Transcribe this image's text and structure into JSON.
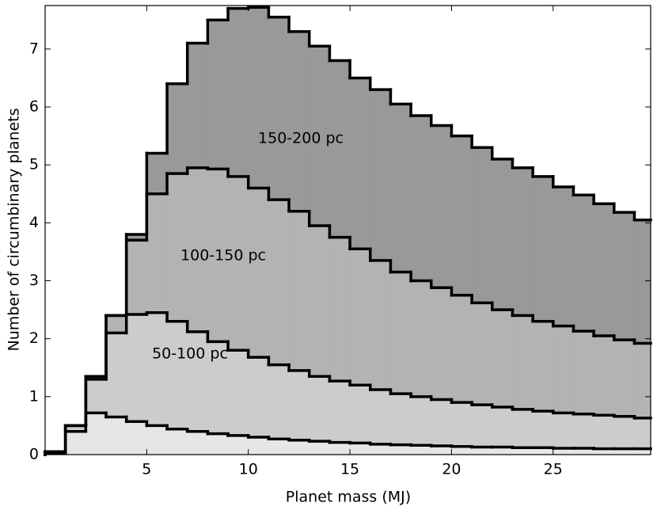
{
  "chart_data": {
    "type": "stacked-step-histogram",
    "xlabel": "Planet mass (MJ)",
    "ylabel": "Number of circumbinary planets",
    "bins": [
      0,
      1,
      2,
      3,
      4,
      5,
      6,
      7,
      8,
      9,
      10,
      11,
      12,
      13,
      14,
      15,
      16,
      17,
      18,
      19,
      20,
      21,
      22,
      23,
      24,
      25,
      26,
      27,
      28,
      29,
      29.8
    ],
    "series": [
      {
        "color": "#e6e6e6",
        "values": [
          0.03,
          0.4,
          0.72,
          0.65,
          0.57,
          0.5,
          0.44,
          0.4,
          0.36,
          0.33,
          0.3,
          0.27,
          0.25,
          0.23,
          0.21,
          0.2,
          0.18,
          0.17,
          0.16,
          0.15,
          0.14,
          0.13,
          0.13,
          0.12,
          0.12,
          0.11,
          0.11,
          0.1,
          0.1,
          0.1
        ]
      },
      {
        "name": "50-100 pc",
        "color": "#cccccc",
        "values": [
          0.02,
          0.1,
          0.58,
          1.45,
          1.85,
          1.95,
          1.86,
          1.72,
          1.59,
          1.47,
          1.38,
          1.28,
          1.2,
          1.12,
          1.06,
          1.0,
          0.94,
          0.88,
          0.84,
          0.8,
          0.76,
          0.73,
          0.69,
          0.66,
          0.63,
          0.61,
          0.59,
          0.58,
          0.56,
          0.53
        ]
      },
      {
        "name": "100-150 pc",
        "color": "#b3b3b3",
        "values": [
          0,
          0,
          0.05,
          0.3,
          1.28,
          2.05,
          2.55,
          2.83,
          2.98,
          3.0,
          2.92,
          2.85,
          2.75,
          2.6,
          2.48,
          2.35,
          2.23,
          2.1,
          2.0,
          1.93,
          1.85,
          1.76,
          1.68,
          1.62,
          1.55,
          1.5,
          1.43,
          1.37,
          1.32,
          1.29
        ]
      },
      {
        "name": "150-200 pc",
        "color": "#999999",
        "values": [
          0,
          0,
          0,
          0,
          0.1,
          0.7,
          1.55,
          2.15,
          2.57,
          2.9,
          3.12,
          3.15,
          3.1,
          3.1,
          3.05,
          2.95,
          2.95,
          2.9,
          2.85,
          2.8,
          2.75,
          2.68,
          2.6,
          2.55,
          2.5,
          2.4,
          2.35,
          2.28,
          2.2,
          2.13
        ]
      }
    ],
    "xlim": [
      0,
      29.8
    ],
    "ylim": [
      0,
      7.75
    ],
    "xticks": [
      5,
      10,
      15,
      20,
      25
    ],
    "yticks": [
      0,
      1,
      2,
      3,
      4,
      5,
      6,
      7
    ]
  }
}
